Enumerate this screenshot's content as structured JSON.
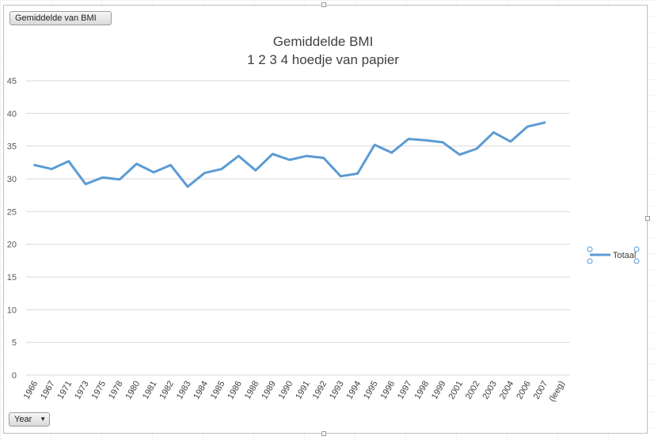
{
  "pivot": {
    "value_field_button": "Gemiddelde van BMI",
    "axis_field_button": "Year",
    "axis_field_dropdown_icon": "triangle-down-icon"
  },
  "chart_data": {
    "type": "line",
    "title": "Gemiddelde BMI",
    "subtitle": "1 2 3 4 hoedje van papier",
    "xlabel": "",
    "ylabel": "",
    "ylim": [
      0,
      45
    ],
    "yticks": [
      0,
      5,
      10,
      15,
      20,
      25,
      30,
      35,
      40,
      45
    ],
    "grid": true,
    "legend": "right",
    "line_color": "#5B9BD5",
    "categories": [
      "1966",
      "1967",
      "1971",
      "1973",
      "1975",
      "1978",
      "1980",
      "1981",
      "1982",
      "1983",
      "1984",
      "1985",
      "1986",
      "1988",
      "1989",
      "1990",
      "1991",
      "1992",
      "1993",
      "1994",
      "1995",
      "1996",
      "1997",
      "1998",
      "1999",
      "2001",
      "2002",
      "2003",
      "2004",
      "2006",
      "2007",
      "(leeg)"
    ],
    "series": [
      {
        "name": "Totaal",
        "values": [
          32.1,
          31.5,
          32.7,
          29.2,
          30.2,
          29.9,
          32.3,
          31.0,
          32.1,
          28.8,
          30.9,
          31.5,
          33.5,
          31.3,
          33.8,
          32.9,
          33.5,
          33.2,
          30.4,
          30.8,
          35.2,
          34.0,
          36.1,
          35.9,
          35.6,
          33.7,
          34.6,
          37.1,
          35.7,
          38.0,
          38.6,
          null
        ]
      }
    ]
  }
}
